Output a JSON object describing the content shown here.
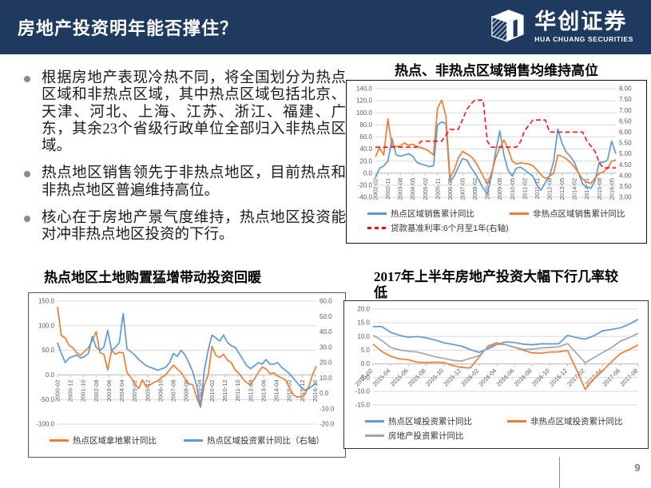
{
  "header": {
    "title": "房地产投资明年能否撑住？",
    "logo_cn": "华创证券",
    "logo_en": "HUA CHUANG SECURITIES"
  },
  "bullets": [
    "根据房地产表现冷热不同，将全国划分为热点区域和非热点区域，其中热点区域包括北京、天津、河北、上海、江苏、浙江、福建、广东，其余23个省级行政单位全部归入非热点区域。",
    "热点地区销售领先于非热点地区，目前热点和非热点地区普遍维持高位。",
    "核心在于房地产景气度维持，热点地区投资能对冲非热点地区投资的下行。"
  ],
  "footer": {
    "page_number": "9"
  },
  "colors": {
    "header_bg": "#1f3a5f",
    "blue": "#5B9BD5",
    "orange": "#ED7D31",
    "gray": "#A5A5A5",
    "red": "#FF0000"
  },
  "chart_data": [
    {
      "type": "line",
      "title": "热点、非热点区域销售均维持高位",
      "legend_position": "bottom",
      "grid": true,
      "label_rotate": 90,
      "tick_span": 0.983,
      "x_labels": [
        "2002-02",
        "2002-11",
        "2003-08",
        "2004-05",
        "2005-02",
        "2005-11",
        "2006-08",
        "2007-05",
        "2008-02",
        "2008-11",
        "2009-08",
        "2010-05",
        "2011-02",
        "2011-11",
        "2012-08",
        "2013-05",
        "2014-02",
        "2014-11",
        "2015-08",
        "2016-05"
      ],
      "left_axis": {
        "range": [
          -40,
          140
        ],
        "ticks": [
          "140.0",
          "120.0",
          "100.0",
          "80.0",
          "60.0",
          "40.0",
          "20.0",
          "0.0",
          "-20.0",
          "-40.0"
        ]
      },
      "right_axis": {
        "range": [
          3,
          8
        ],
        "ticks": [
          "8.00",
          "7.50",
          "7.00",
          "6.50",
          "6.00",
          "5.50",
          "5.00",
          "4.50",
          "4.00",
          "3.50",
          "3.00"
        ]
      },
      "series": [
        {
          "name": "热点区域销售累计同比",
          "color": "#5B9BD5",
          "axis": "left",
          "dash": false,
          "values": [
            -8,
            8,
            12,
            20,
            57,
            30,
            28,
            30,
            32,
            28,
            18,
            15,
            13,
            11,
            12,
            80,
            85,
            82,
            -15,
            -5,
            10,
            24,
            22,
            10,
            0,
            -12,
            -25,
            -35,
            -5,
            35,
            70,
            30,
            5,
            -5,
            8,
            10,
            5,
            0,
            -5,
            -20,
            -28,
            -15,
            -5,
            20,
            73,
            50,
            35,
            28,
            18,
            0,
            -18,
            -23,
            -25,
            -12,
            18,
            18,
            22,
            53,
            32
          ]
        },
        {
          "name": "非热点区域销售累计同比",
          "color": "#ED7D31",
          "axis": "left",
          "dash": false,
          "values": [
            27,
            42,
            30,
            90,
            45,
            44,
            45,
            50,
            46,
            48,
            44,
            42,
            40,
            36,
            30,
            108,
            121,
            95,
            -8,
            5,
            25,
            36,
            32,
            28,
            20,
            8,
            -5,
            -18,
            0,
            25,
            42,
            55,
            40,
            20,
            15,
            17,
            16,
            15,
            12,
            5,
            -3,
            -9,
            -5,
            0,
            30,
            28,
            24,
            18,
            10,
            0,
            -10,
            -15,
            -17,
            -8,
            0,
            2,
            8,
            20,
            22
          ]
        },
        {
          "name": "贷款基准利率:6个月至1年(右轴)",
          "color": "#FF0000",
          "axis": "right",
          "dash": true,
          "values": [
            5.31,
            5.31,
            5.31,
            5.31,
            5.31,
            5.31,
            5.31,
            5.31,
            5.31,
            5.31,
            5.31,
            5.58,
            5.58,
            5.58,
            5.58,
            5.58,
            5.58,
            5.85,
            6.12,
            6.12,
            6.12,
            6.57,
            7.02,
            7.29,
            7.47,
            7.47,
            7.47,
            5.58,
            5.31,
            5.31,
            5.31,
            5.31,
            5.31,
            5.31,
            5.31,
            5.56,
            6.06,
            6.31,
            6.56,
            6.56,
            6.56,
            6.56,
            6.0,
            6.0,
            6.0,
            6.0,
            6.0,
            6.0,
            6.0,
            6.0,
            6.0,
            5.6,
            5.35,
            5.1,
            4.6,
            4.35,
            4.35,
            4.35,
            4.35
          ]
        }
      ]
    },
    {
      "type": "line",
      "title": "热点地区土地购置猛增带动投资回暖",
      "legend_position": "bottom",
      "grid": true,
      "label_rotate": 90,
      "tick_span": 0.995,
      "x_labels": [
        "2000-02",
        "2000-12",
        "2001-10",
        "2002-08",
        "2003-06",
        "2004-04",
        "2005-02",
        "2005-12",
        "2006-10",
        "2007-08",
        "2008-06",
        "2009-04",
        "2010-02",
        "2010-12",
        "2011-10",
        "2012-08",
        "2013-06",
        "2014-04",
        "2015-02",
        "2015-12",
        "2016-10"
      ],
      "left_axis": {
        "range": [
          -100,
          150
        ],
        "ticks": [
          "150.0",
          "100.0",
          "50.0",
          "0.0",
          "-50.0",
          "-100.0"
        ]
      },
      "right_axis": {
        "range": [
          -20,
          60
        ],
        "ticks": [
          "60.0",
          "50.0",
          "40.0",
          "30.0",
          "20.0",
          "10.0",
          "0.0",
          "-10.0",
          "-20.0"
        ]
      },
      "series": [
        {
          "name": "热点区域拿地累计同比",
          "color": "#ED7D31",
          "axis": "left",
          "dash": false,
          "values": [
            138,
            80,
            75,
            60,
            55,
            45,
            40,
            48,
            55,
            70,
            88,
            45,
            42,
            10,
            50,
            42,
            46,
            45,
            5,
            -5,
            -18,
            -28,
            -10,
            -25,
            -20,
            -15,
            -12,
            -5,
            0,
            10,
            20,
            12,
            5,
            -8,
            -18,
            -20,
            -45,
            -65,
            -20,
            0,
            58,
            40,
            35,
            42,
            30,
            25,
            10,
            3,
            -8,
            -16,
            -20,
            -8,
            5,
            16,
            12,
            3,
            4,
            -2,
            -6,
            -10,
            -25,
            -40,
            -45,
            -44,
            -40,
            -25,
            0,
            18
          ]
        },
        {
          "name": "热点区域投资累计同比（右轴）",
          "color": "#5B9BD5",
          "axis": "right",
          "dash": false,
          "values": [
            33,
            26,
            20,
            23,
            24,
            25,
            23,
            24,
            26,
            37,
            30,
            28,
            30,
            41,
            28,
            30,
            33,
            52,
            29,
            27,
            25,
            22,
            20,
            18,
            17,
            16,
            15,
            16,
            17,
            20,
            26,
            24,
            28,
            25,
            20,
            14,
            5,
            -9,
            15,
            28,
            38,
            36,
            34,
            38,
            33,
            31,
            30,
            26,
            22,
            18,
            16,
            18,
            20,
            19,
            22,
            19,
            19,
            20,
            17,
            15,
            13,
            10,
            7,
            4,
            2,
            3,
            5,
            7
          ]
        }
      ]
    },
    {
      "type": "line",
      "title": "2017年上半年房地产投资大幅下行几率较低",
      "legend_position": "bottom",
      "grid": true,
      "label_rotate": 45,
      "tick_span": 1,
      "x_labels": [
        "2015-02",
        "2015-04",
        "2015-06",
        "2015-08",
        "2015-10",
        "2015-12",
        "2016-02",
        "2016-04",
        "2016-06",
        "2016-08",
        "2016-10",
        "2016-12",
        "2017-02",
        "2017-04",
        "2017-06",
        "2017-08"
      ],
      "left_axis": {
        "range": [
          -15,
          20
        ],
        "ticks": [
          "20.0",
          "15.0",
          "10.0",
          "5.0",
          "0.0",
          "-5.0",
          "-10.0",
          "-15.0"
        ]
      },
      "series": [
        {
          "name": "热点区域投资累计同比",
          "color": "#5B9BD5",
          "axis": "left",
          "dash": false,
          "values": [
            13.6,
            13.6,
            11.5,
            10.4,
            9.7,
            10.0,
            9.5,
            8.7,
            7.7,
            7.1,
            6.5,
            5.2,
            4.2,
            5.5,
            7.0,
            8.0,
            7.8,
            7.2,
            7.0,
            7.3,
            7.3,
            7.3,
            10.4,
            9.6,
            9.0,
            10.3,
            12.1,
            12.6,
            13.2,
            14.5,
            16.3
          ]
        },
        {
          "name": "非热点区域投资累计同比",
          "color": "#ED7D31",
          "axis": "left",
          "dash": false,
          "values": [
            7.2,
            4.5,
            2.8,
            1.8,
            1.5,
            0.6,
            0.5,
            0.6,
            0.5,
            -0.6,
            -1.3,
            -1.5,
            2.5,
            6.5,
            7.7,
            7.0,
            6.0,
            5.0,
            4.0,
            3.9,
            4.3,
            4.4,
            4.9,
            -2.0,
            -9.3,
            -5.5,
            -2.5,
            0.8,
            3.8,
            5.2,
            7.0
          ]
        },
        {
          "name": "房地产投资累计同比",
          "color": "#A5A5A5",
          "axis": "left",
          "dash": false,
          "values": [
            10.4,
            8.5,
            6.0,
            5.1,
            4.6,
            4.3,
            3.5,
            2.6,
            2.0,
            1.3,
            1.0,
            2.0,
            3.0,
            6.2,
            7.2,
            7.0,
            6.1,
            5.3,
            5.4,
            5.8,
            6.0,
            6.2,
            7.4,
            4.0,
            0.4,
            2.3,
            4.2,
            6.0,
            8.3,
            9.6,
            11.2
          ]
        }
      ]
    }
  ]
}
